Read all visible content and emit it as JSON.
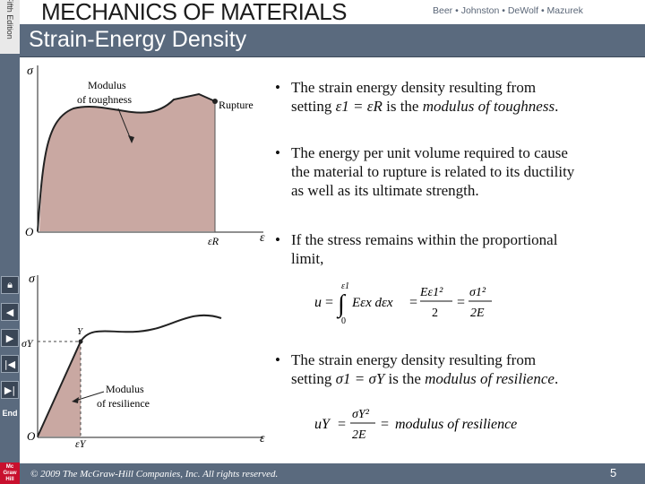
{
  "header": {
    "title": "MECHANICS OF MATERIALS",
    "edition": "Fifth Edition",
    "authors": "Beer • Johnston • DeWolf • Mazurek"
  },
  "slide": {
    "title": "Strain-Energy Density",
    "page_number": "5"
  },
  "nav": {
    "home_icon": "lock-icon",
    "prev_icon": "chevron-left-icon",
    "next_icon": "chevron-right-icon",
    "first_icon": "skip-first-icon",
    "last_icon": "skip-last-icon",
    "end_label": "End"
  },
  "logo": {
    "line1": "Mc",
    "line2": "Graw",
    "line3": "Hill"
  },
  "footer": {
    "copyright": "© 2009 The McGraw-Hill Companies, Inc. All rights reserved."
  },
  "diagram_toughness": {
    "sigma": "σ",
    "origin": "O",
    "epsilon": "ε",
    "epsilon_r": "εR",
    "label_line1": "Modulus",
    "label_line2": "of toughness",
    "rupture": "Rupture"
  },
  "diagram_resilience": {
    "sigma": "σ",
    "sigma_y": "σY",
    "origin": "O",
    "epsilon": "ε",
    "epsilon_y": "εY",
    "y_point": "Y",
    "label_line1": "Modulus",
    "label_line2": "of resilience"
  },
  "bullets": {
    "b1_line1": "The strain energy density resulting from",
    "b1_setting": "setting ",
    "b1_eq": "ε1 = εR",
    "b1_is": " is the ",
    "b1_term": "modulus of toughness",
    "b1_end": ".",
    "b2_line1": "The energy per unit volume required to cause",
    "b2_line2": "the material to rupture is related to its ductility",
    "b2_line3": "as well as its ultimate strength.",
    "b3_line1": "If the stress remains within the proportional",
    "b3_line2": "limit,",
    "b4_line1": "The strain energy density resulting from",
    "b4_setting": "setting ",
    "b4_eq": "σ1 = σY",
    "b4_is": " is the ",
    "b4_term": "modulus of resilience",
    "b4_end": "."
  },
  "eq1": {
    "u": "u",
    "equals1": "=",
    "int_upper": "ε1",
    "int_lower": "0",
    "integrand": "Eεx dεx",
    "equals2": "=",
    "num1": "Eε1²",
    "den1": "2",
    "equals3": "=",
    "num2": "σ1²",
    "den2": "2E"
  },
  "eq2": {
    "u_y": "uY",
    "equals1": "=",
    "num": "σY²",
    "den": "2E",
    "equals2": "=",
    "term": "modulus of resilience"
  }
}
